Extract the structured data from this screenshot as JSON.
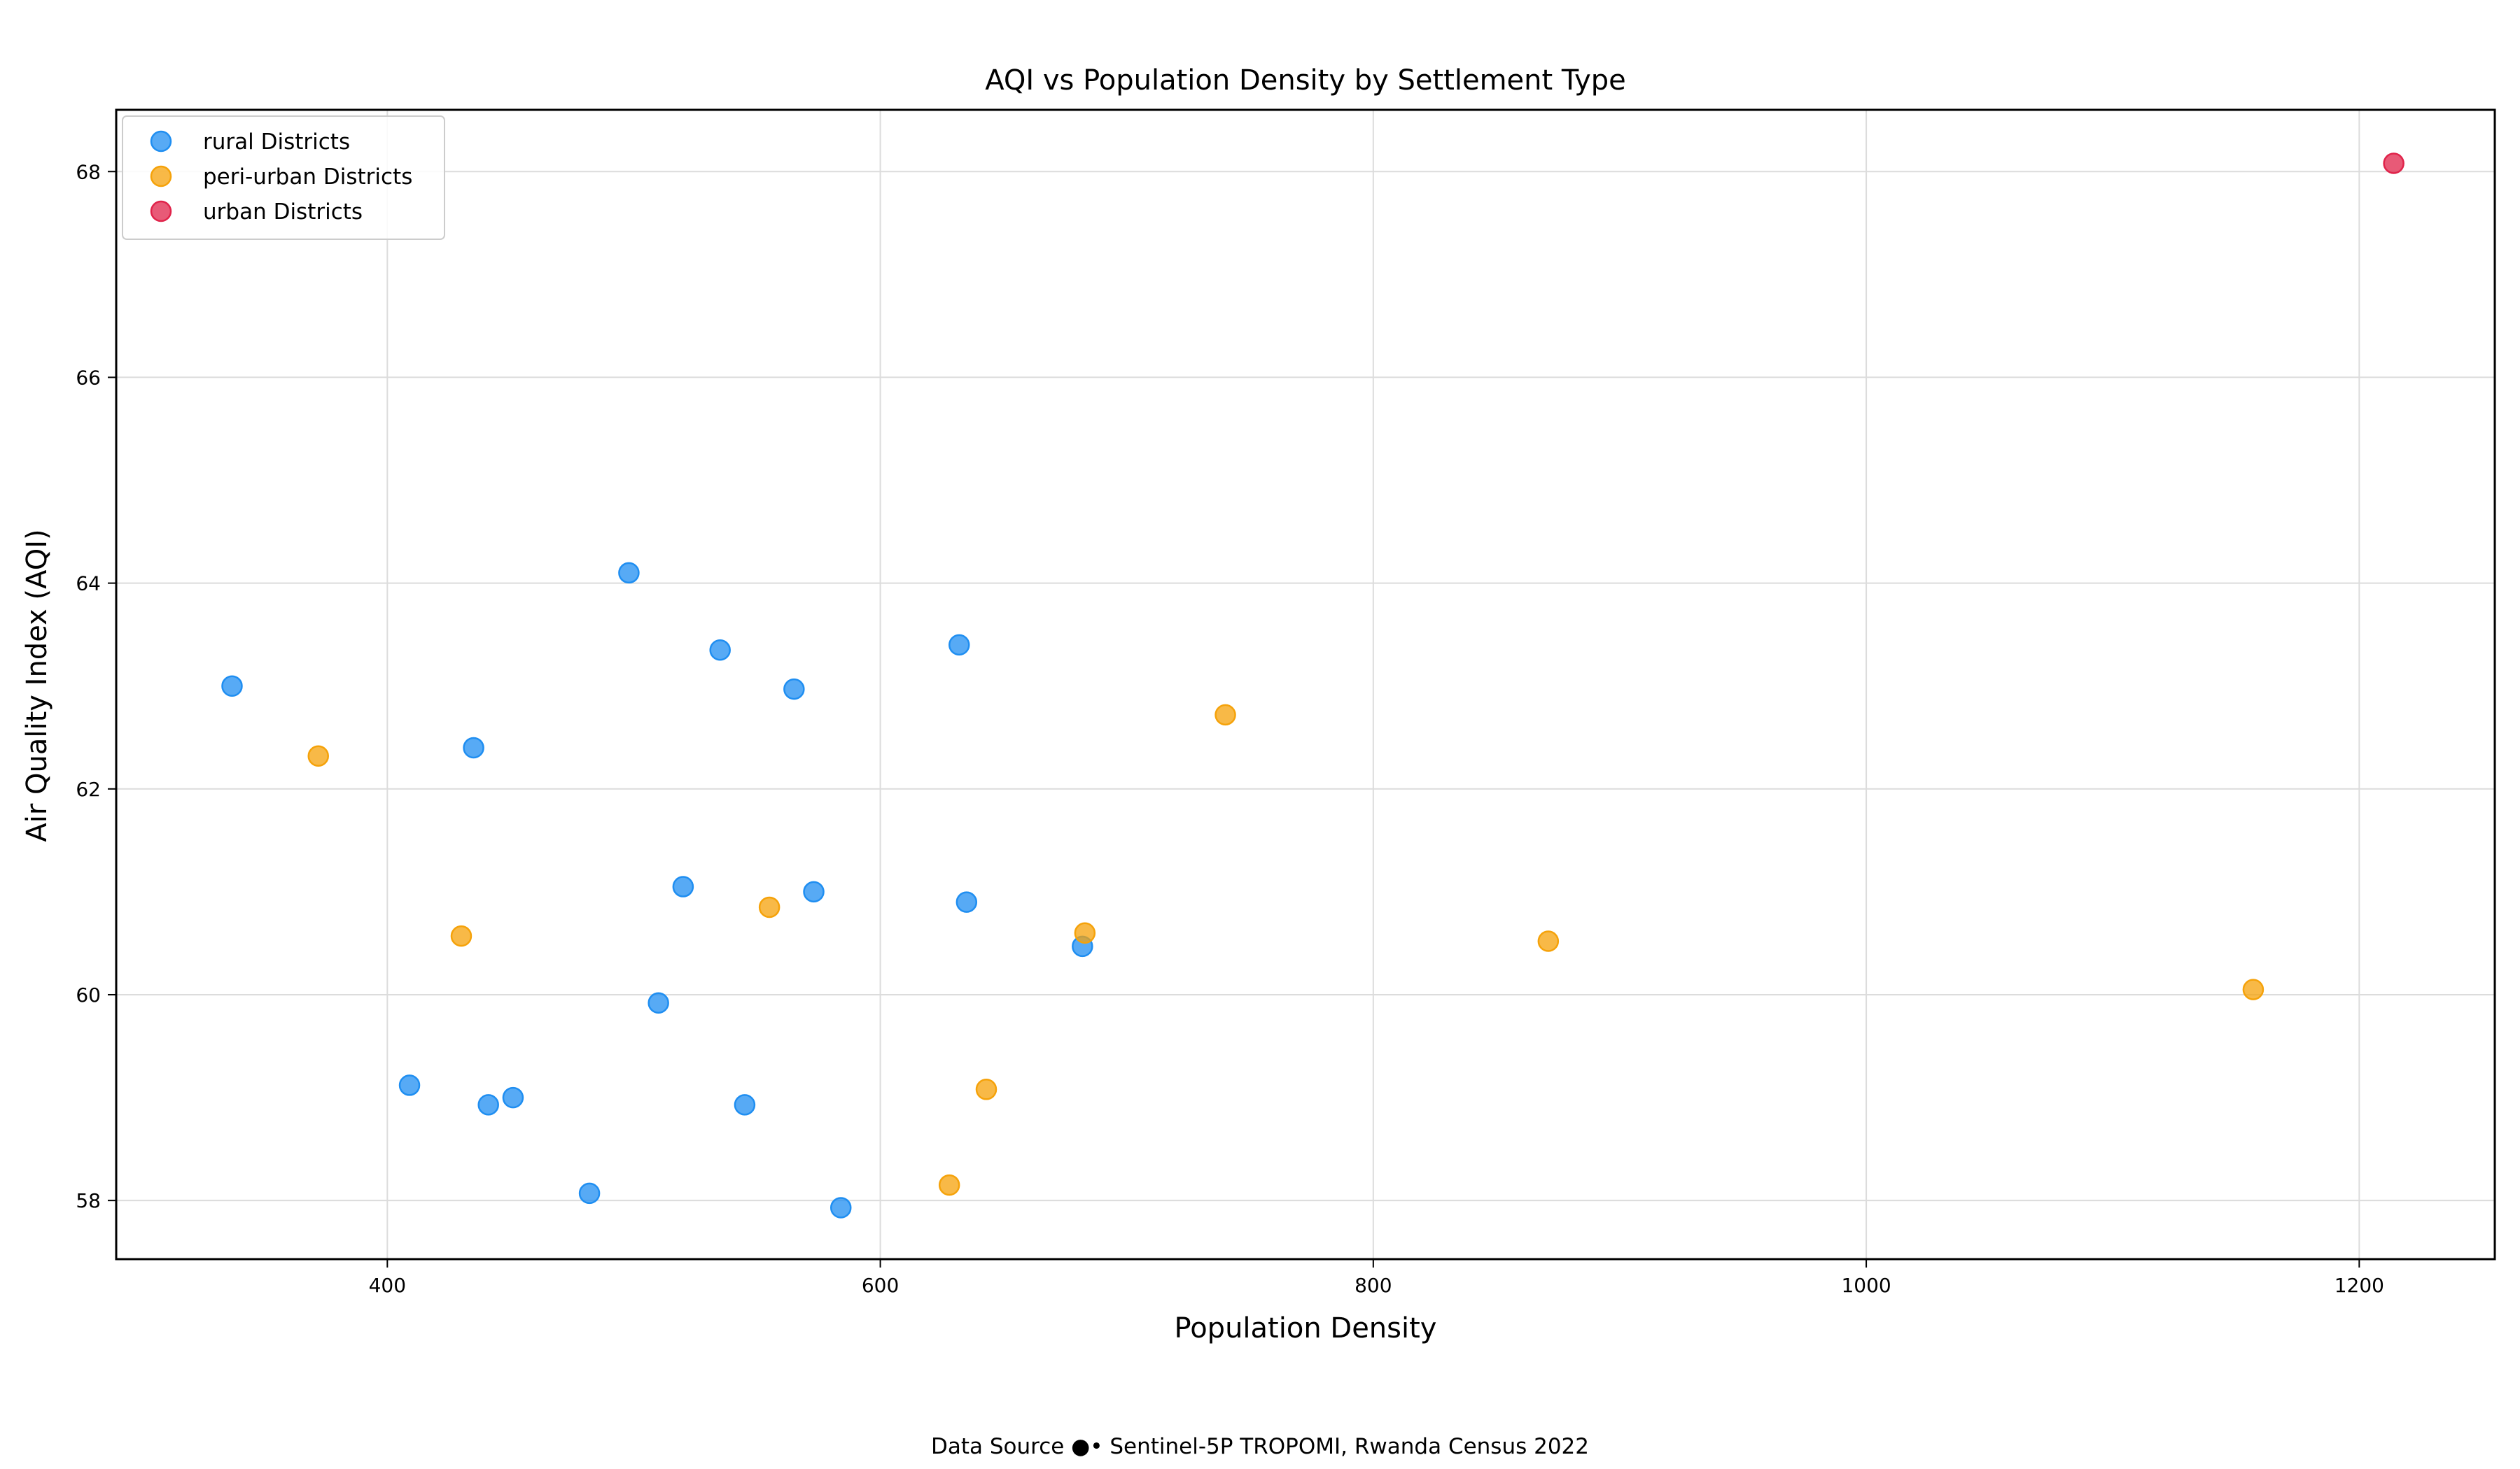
{
  "chart_data": {
    "type": "scatter",
    "title": "AQI vs Population Density by Settlement Type",
    "xlabel": "Population Density",
    "ylabel": "Air Quality Index (AQI)",
    "xlim": [
      290,
      1255
    ],
    "ylim": [
      57.43,
      68.6
    ],
    "xticks": [
      400,
      600,
      800,
      1000,
      1200
    ],
    "yticks": [
      58,
      60,
      62,
      64,
      66,
      68
    ],
    "grid": true,
    "legend_position": "top-left",
    "series": [
      {
        "name": "rural Districts",
        "color": "#1f8ef1",
        "points": [
          {
            "x": 337,
            "y": 63.0
          },
          {
            "x": 409,
            "y": 59.12
          },
          {
            "x": 435,
            "y": 62.4
          },
          {
            "x": 441,
            "y": 58.93
          },
          {
            "x": 451,
            "y": 59.0
          },
          {
            "x": 482,
            "y": 58.07
          },
          {
            "x": 498,
            "y": 64.1
          },
          {
            "x": 510,
            "y": 59.92
          },
          {
            "x": 520,
            "y": 61.05
          },
          {
            "x": 535,
            "y": 63.35
          },
          {
            "x": 545,
            "y": 58.93
          },
          {
            "x": 565,
            "y": 62.97
          },
          {
            "x": 573,
            "y": 61.0
          },
          {
            "x": 584,
            "y": 57.93
          },
          {
            "x": 632,
            "y": 63.4
          },
          {
            "x": 635,
            "y": 60.9
          },
          {
            "x": 682,
            "y": 60.47
          }
        ]
      },
      {
        "name": "peri-urban Districts",
        "color": "#f5a20a",
        "points": [
          {
            "x": 372,
            "y": 62.32
          },
          {
            "x": 430,
            "y": 60.57
          },
          {
            "x": 555,
            "y": 60.85
          },
          {
            "x": 628,
            "y": 58.15
          },
          {
            "x": 643,
            "y": 59.08
          },
          {
            "x": 683,
            "y": 60.6
          },
          {
            "x": 740,
            "y": 62.72
          },
          {
            "x": 871,
            "y": 60.52
          },
          {
            "x": 1157,
            "y": 60.05
          }
        ]
      },
      {
        "name": "urban Districts",
        "color": "#e0234a",
        "points": [
          {
            "x": 1214,
            "y": 68.08
          }
        ]
      }
    ]
  },
  "source_note": "Data Source ●• Sentinel-5P TROPOMI, Rwanda Census 2022"
}
